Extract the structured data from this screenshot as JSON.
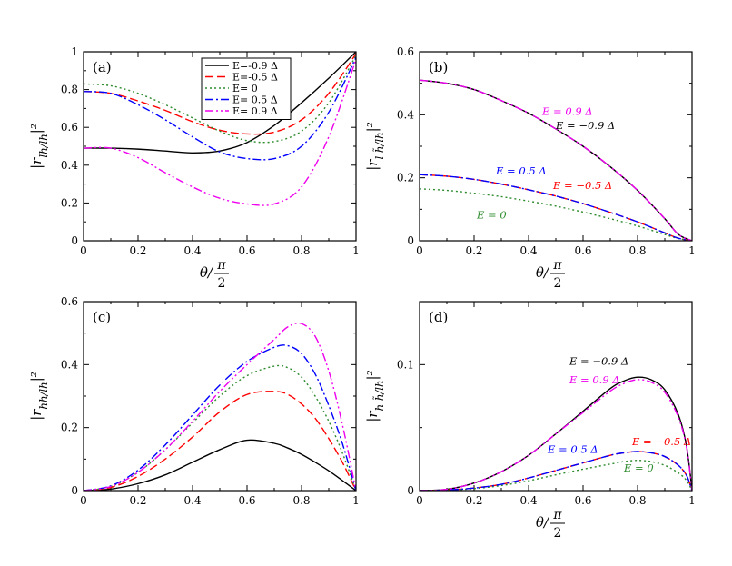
{
  "series_styles": [
    {
      "key": "m09",
      "label": "E=-0.9 Δ",
      "color": "#000000",
      "dash": ""
    },
    {
      "key": "m05",
      "label": "E=-0.5 Δ",
      "color": "#ff0000",
      "dash": "9,4"
    },
    {
      "key": "z",
      "label": "E= 0",
      "color": "#2e8b2e",
      "dash": "2,3"
    },
    {
      "key": "p05",
      "label": "E= 0.5 Δ",
      "color": "#0000ff",
      "dash": "9,3,2,3"
    },
    {
      "key": "p09",
      "label": "E= 0.9 Δ",
      "color": "#ee00ee",
      "dash": "9,3,2,3,2,3"
    }
  ],
  "chart_data": [
    {
      "type": "line",
      "panel": "(a)",
      "xlabel": "θ/π/2",
      "ylabel": "|r_{lh/lh}|²",
      "xlim": [
        0,
        1
      ],
      "ylim": [
        0,
        1
      ],
      "xticks": [
        "0",
        "0.2",
        "0.4",
        "0.6",
        "0.8",
        "1"
      ],
      "yticks": [
        "0",
        "0.2",
        "0.4",
        "0.6",
        "0.8",
        "1"
      ],
      "legend": "top-center",
      "x": [
        0,
        0.1,
        0.2,
        0.3,
        0.4,
        0.5,
        0.6,
        0.7,
        0.8,
        0.9,
        1.0
      ],
      "series": [
        {
          "name": "E=-0.9 Δ",
          "values": [
            0.49,
            0.49,
            0.485,
            0.475,
            0.465,
            0.475,
            0.52,
            0.61,
            0.73,
            0.86,
            1.0
          ]
        },
        {
          "name": "E=-0.5 Δ",
          "values": [
            0.79,
            0.78,
            0.74,
            0.69,
            0.63,
            0.585,
            0.565,
            0.575,
            0.64,
            0.78,
            0.99
          ]
        },
        {
          "name": "E= 0",
          "values": [
            0.83,
            0.82,
            0.78,
            0.72,
            0.65,
            0.58,
            0.53,
            0.525,
            0.58,
            0.73,
            0.98
          ]
        },
        {
          "name": "E= 0.5 Δ",
          "values": [
            0.79,
            0.78,
            0.72,
            0.64,
            0.55,
            0.47,
            0.435,
            0.435,
            0.5,
            0.68,
            0.97
          ]
        },
        {
          "name": "E= 0.9 Δ",
          "values": [
            0.49,
            0.49,
            0.44,
            0.36,
            0.285,
            0.225,
            0.195,
            0.195,
            0.285,
            0.55,
            0.96
          ]
        }
      ]
    },
    {
      "type": "line",
      "panel": "(b)",
      "xlabel": "θ/π/2",
      "ylabel": "|r_{l h̃/lh}|²",
      "xlim": [
        0,
        1
      ],
      "ylim": [
        0,
        0.6
      ],
      "xticks": [
        "0",
        "0.2",
        "0.4",
        "0.6",
        "0.8",
        "1"
      ],
      "yticks": [
        "0",
        "0.2",
        "0.4",
        "0.6"
      ],
      "x": [
        0,
        0.1,
        0.2,
        0.3,
        0.4,
        0.5,
        0.6,
        0.7,
        0.8,
        0.9,
        0.95,
        1.0
      ],
      "series": [
        {
          "name": "E=-0.9 Δ",
          "values": [
            0.51,
            0.5,
            0.48,
            0.445,
            0.405,
            0.355,
            0.3,
            0.235,
            0.16,
            0.07,
            0.02,
            0.0
          ]
        },
        {
          "name": "E=-0.5 Δ",
          "values": [
            0.21,
            0.205,
            0.195,
            0.18,
            0.162,
            0.142,
            0.118,
            0.09,
            0.06,
            0.025,
            0.008,
            0.0
          ]
        },
        {
          "name": "E= 0",
          "values": [
            0.165,
            0.16,
            0.151,
            0.14,
            0.126,
            0.11,
            0.091,
            0.07,
            0.047,
            0.02,
            0.007,
            0.0
          ]
        },
        {
          "name": "E= 0.5 Δ",
          "values": [
            0.21,
            0.205,
            0.195,
            0.18,
            0.162,
            0.142,
            0.118,
            0.09,
            0.06,
            0.025,
            0.008,
            0.0
          ]
        },
        {
          "name": "E= 0.9 Δ",
          "values": [
            0.51,
            0.5,
            0.48,
            0.445,
            0.405,
            0.355,
            0.3,
            0.235,
            0.16,
            0.07,
            0.02,
            0.0
          ]
        }
      ],
      "annotations": [
        {
          "text": "E = 0.9 Δ",
          "series": "E= 0.9 Δ",
          "x": 0.45,
          "y": 0.4
        },
        {
          "text": "E = −0.9 Δ",
          "series": "E=-0.9 Δ",
          "x": 0.5,
          "y": 0.355
        },
        {
          "text": "E = 0.5 Δ",
          "series": "E= 0.5 Δ",
          "x": 0.28,
          "y": 0.21
        },
        {
          "text": "E = −0.5 Δ",
          "series": "E=-0.5 Δ",
          "x": 0.49,
          "y": 0.165
        },
        {
          "text": "E = 0",
          "series": "E= 0",
          "x": 0.21,
          "y": 0.07
        }
      ]
    },
    {
      "type": "line",
      "panel": "(c)",
      "xlabel": "",
      "ylabel": "|r_{hh/lh}|²",
      "xlim": [
        0,
        1
      ],
      "ylim": [
        0,
        0.6
      ],
      "xticks": [
        "0",
        "0.2",
        "0.4",
        "0.6",
        "0.8",
        "1"
      ],
      "yticks": [
        "0",
        "0.2",
        "0.4",
        "0.6"
      ],
      "x": [
        0,
        0.1,
        0.2,
        0.3,
        0.4,
        0.5,
        0.6,
        0.7,
        0.75,
        0.8,
        0.85,
        0.9,
        0.95,
        1.0
      ],
      "series": [
        {
          "name": "E=-0.9 Δ",
          "values": [
            0.0,
            0.005,
            0.022,
            0.05,
            0.09,
            0.13,
            0.16,
            0.15,
            0.135,
            0.115,
            0.09,
            0.063,
            0.032,
            0.0
          ]
        },
        {
          "name": "E=-0.5 Δ",
          "values": [
            0.0,
            0.01,
            0.045,
            0.1,
            0.17,
            0.25,
            0.305,
            0.315,
            0.305,
            0.275,
            0.23,
            0.165,
            0.09,
            0.0
          ]
        },
        {
          "name": "E= 0",
          "values": [
            0.0,
            0.013,
            0.058,
            0.13,
            0.215,
            0.3,
            0.365,
            0.395,
            0.39,
            0.36,
            0.3,
            0.22,
            0.12,
            0.0
          ]
        },
        {
          "name": "E= 0.5 Δ",
          "values": [
            0.0,
            0.015,
            0.065,
            0.145,
            0.24,
            0.335,
            0.41,
            0.455,
            0.46,
            0.435,
            0.37,
            0.27,
            0.15,
            0.0
          ]
        },
        {
          "name": "E= 0.9 Δ",
          "values": [
            0.0,
            0.013,
            0.058,
            0.13,
            0.22,
            0.315,
            0.4,
            0.48,
            0.52,
            0.53,
            0.49,
            0.38,
            0.21,
            0.0
          ]
        }
      ]
    },
    {
      "type": "line",
      "panel": "(d)",
      "xlabel": "θ/π/2",
      "ylabel": "|r_{h h̃/lh}|²",
      "xlim": [
        0,
        1
      ],
      "ylim": [
        0,
        0.15
      ],
      "xticks": [
        "0",
        "0.2",
        "0.4",
        "0.6",
        "0.8",
        "1"
      ],
      "yticks": [
        "0",
        "0.1"
      ],
      "x": [
        0,
        0.1,
        0.2,
        0.3,
        0.4,
        0.5,
        0.6,
        0.7,
        0.75,
        0.8,
        0.85,
        0.9,
        0.95,
        0.98,
        1.0
      ],
      "series": [
        {
          "name": "E=-0.9 Δ",
          "values": [
            0.0,
            0.001,
            0.006,
            0.015,
            0.028,
            0.045,
            0.063,
            0.081,
            0.087,
            0.09,
            0.088,
            0.08,
            0.06,
            0.035,
            0.0
          ]
        },
        {
          "name": "E=-0.5 Δ",
          "values": [
            0.0,
            0.0005,
            0.002,
            0.005,
            0.01,
            0.016,
            0.022,
            0.028,
            0.03,
            0.031,
            0.03,
            0.027,
            0.02,
            0.012,
            0.0
          ]
        },
        {
          "name": "E= 0",
          "values": [
            0.0,
            0.0004,
            0.0016,
            0.004,
            0.0078,
            0.0125,
            0.017,
            0.021,
            0.023,
            0.024,
            0.023,
            0.02,
            0.014,
            0.008,
            0.0
          ]
        },
        {
          "name": "E= 0.5 Δ",
          "values": [
            0.0,
            0.0005,
            0.002,
            0.005,
            0.01,
            0.016,
            0.022,
            0.028,
            0.03,
            0.031,
            0.03,
            0.027,
            0.02,
            0.012,
            0.0
          ]
        },
        {
          "name": "E= 0.9 Δ",
          "values": [
            0.0,
            0.001,
            0.006,
            0.015,
            0.028,
            0.045,
            0.062,
            0.079,
            0.085,
            0.088,
            0.086,
            0.078,
            0.058,
            0.034,
            0.0
          ]
        }
      ],
      "annotations": [
        {
          "text": "E = −0.9 Δ",
          "series": "E=-0.9 Δ",
          "x": 0.55,
          "y": 0.1
        },
        {
          "text": "E = 0.9 Δ",
          "series": "E= 0.9 Δ",
          "x": 0.55,
          "y": 0.085
        },
        {
          "text": "E = 0.5 Δ",
          "series": "E= 0.5 Δ",
          "x": 0.47,
          "y": 0.03
        },
        {
          "text": "E = −0.5 Δ",
          "series": "E=-0.5 Δ",
          "x": 0.78,
          "y": 0.036
        },
        {
          "text": "E = 0",
          "series": "E= 0",
          "x": 0.75,
          "y": 0.015
        }
      ]
    }
  ]
}
